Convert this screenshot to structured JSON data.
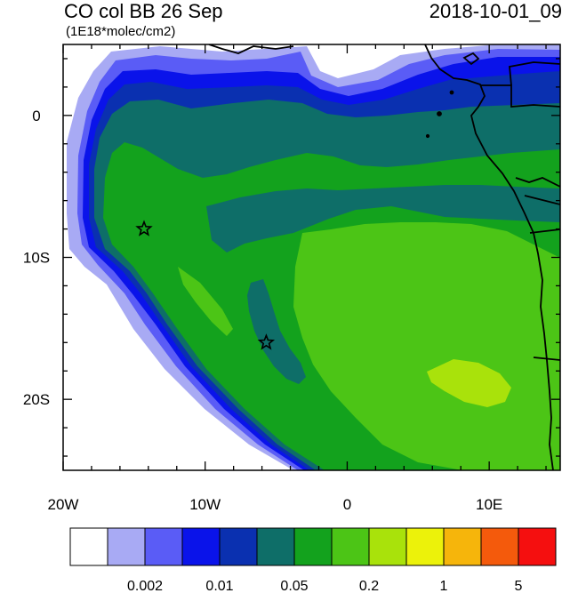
{
  "header": {
    "title": "CO col BB 26 Sep",
    "datetime": "2018-10-01_09",
    "units": "(1E18*molec/cm2)"
  },
  "map": {
    "lon_range": [
      -20,
      15
    ],
    "lat_range": [
      -25,
      5
    ],
    "x_tick_labels": [
      "20W",
      "10W",
      "0",
      "10E"
    ],
    "y_tick_labels": [
      "0",
      "10S",
      "20S"
    ],
    "markers": [
      {
        "name": "star-marker",
        "lon": -14.3,
        "lat": -8.0
      },
      {
        "name": "star-marker",
        "lon": -5.7,
        "lat": -16.0
      }
    ]
  },
  "colorbar": {
    "colors": [
      "#ffffff",
      "#a8aaf4",
      "#5a5cf6",
      "#0a13ea",
      "#0a30b0",
      "#0e6e68",
      "#13a21d",
      "#4cc516",
      "#a9e20b",
      "#ecf20a",
      "#f6b50b",
      "#f45a0c",
      "#f50f0f"
    ],
    "tick_labels": [
      "0.002",
      "0.01",
      "0.05",
      "0.2",
      "1",
      "5"
    ]
  }
}
